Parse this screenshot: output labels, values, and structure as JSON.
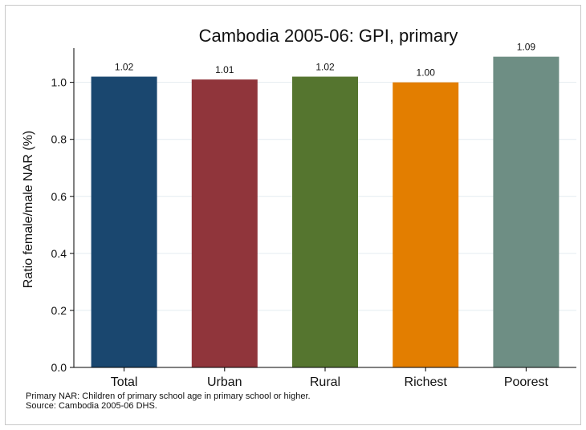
{
  "chart_data": {
    "type": "bar",
    "title": "Cambodia 2005-06: GPI, primary",
    "xlabel": "",
    "ylabel": "Ratio female/male NAR (%)",
    "categories": [
      "Total",
      "Urban",
      "Rural",
      "Richest",
      "Poorest"
    ],
    "values": [
      1.02,
      1.01,
      1.02,
      1.0,
      1.09
    ],
    "value_labels": [
      "1.02",
      "1.01",
      "1.02",
      "1.00",
      "1.09"
    ],
    "colors": [
      "#1a476f",
      "#90353b",
      "#55752f",
      "#e37e00",
      "#6e8e84"
    ],
    "ylim": [
      0,
      1.12
    ],
    "yticks": [
      0,
      0.2,
      0.4,
      0.6,
      0.8,
      1.0
    ],
    "ytick_labels": [
      "0.0",
      "0.2",
      "0.4",
      "0.6",
      "0.8",
      "1.0"
    ],
    "grid": true
  },
  "notes": {
    "line1": "Primary NAR: Children of primary school age in primary school or higher.",
    "line2": "Source: Cambodia 2005-06 DHS."
  }
}
